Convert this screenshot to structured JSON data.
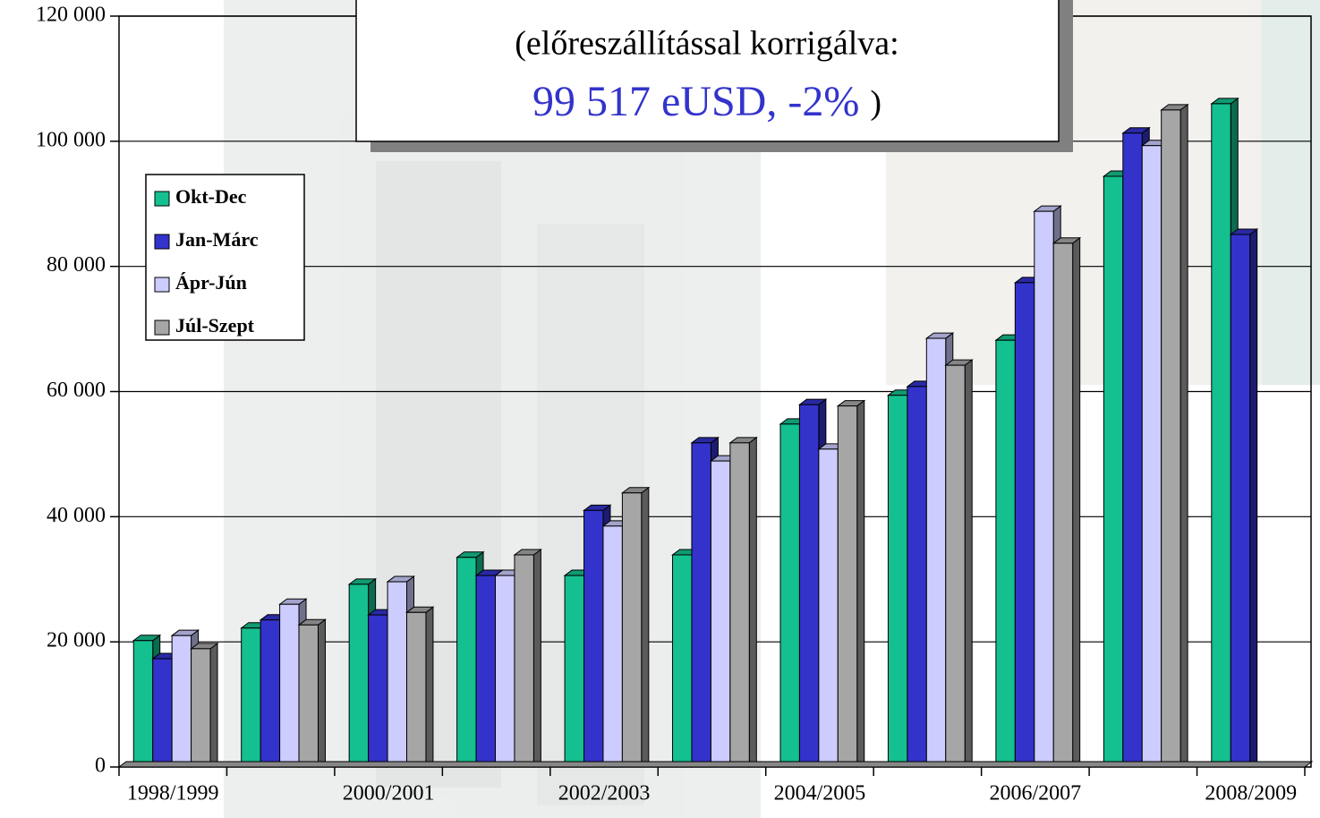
{
  "chart_data": {
    "type": "bar3d",
    "annotation": {
      "line1": "(előreszállítással korrigálva:",
      "value": "99 517 eUSD,  -2%",
      "close": ")"
    },
    "categories": [
      "1998/1999",
      null,
      "2000/2001",
      null,
      "2002/2003",
      null,
      "2004/2005",
      null,
      "2006/2007",
      null,
      "2008/2009"
    ],
    "series": [
      {
        "name": "Okt-Dec",
        "color": "#14c08f",
        "values": [
          20200,
          22200,
          29200,
          33500,
          30600,
          33900,
          54800,
          59400,
          68200,
          94400,
          106000
        ]
      },
      {
        "name": "Jan-Márc",
        "color": "#3333cc",
        "values": [
          17300,
          23500,
          24300,
          30600,
          41000,
          51800,
          57900,
          60800,
          77400,
          101300,
          85100
        ]
      },
      {
        "name": "Ápr-Jún",
        "color": "#ccccff",
        "values": [
          21000,
          26000,
          29600,
          30600,
          38500,
          48900,
          50800,
          68500,
          88800,
          99300,
          null
        ]
      },
      {
        "name": "Júl-Szept",
        "color": "#a6a6a6",
        "values": [
          18900,
          22700,
          24700,
          33900,
          43800,
          51800,
          57700,
          64200,
          83700,
          105000,
          null
        ]
      }
    ],
    "ylim": [
      0,
      120000
    ],
    "yticks": [
      0,
      {
        "value": 20000,
        "label": "20 000"
      },
      {
        "value": 40000,
        "label": "40 000"
      },
      {
        "value": 60000,
        "label": "60 000"
      },
      {
        "value": 80000,
        "label": "80 000"
      },
      {
        "value": 100000,
        "label": "100 000"
      },
      {
        "value": 120000,
        "label": "120 000"
      }
    ],
    "grid": true,
    "legend": "upper-left"
  }
}
